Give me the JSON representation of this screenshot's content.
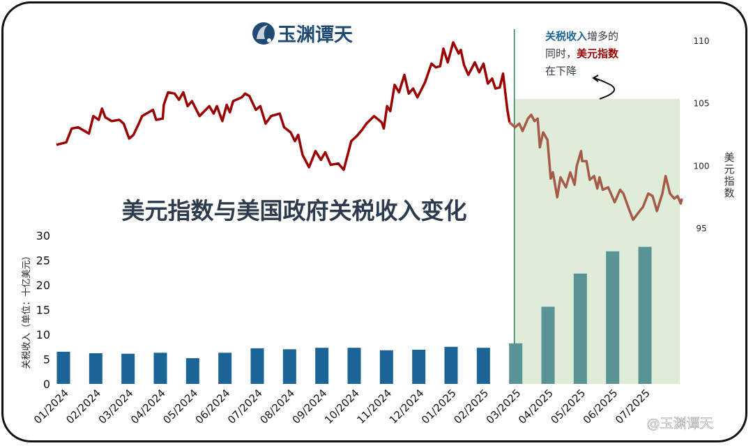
{
  "logo": {
    "text": "玉渊谭天",
    "color": "#1f4a73"
  },
  "watermark": "@玉渊谭天",
  "chart_data": {
    "type": "bar+line",
    "title": "美元指数与美国政府关税收入变化",
    "annotation": {
      "parts": [
        {
          "text": "关税收入",
          "color": "#1a6496"
        },
        {
          "text": "增多的",
          "color": "#333a44"
        },
        {
          "text": "同时，",
          "color": "#333a44"
        },
        {
          "text": "美元指数",
          "color": "#9b0000"
        },
        {
          "text": "在下降",
          "color": "#333a44"
        }
      ]
    },
    "highlight_start": "03/2025",
    "categories": [
      "01/2024",
      "02/2024",
      "03/2024",
      "04/2024",
      "05/2024",
      "06/2024",
      "07/2024",
      "08/2024",
      "09/2024",
      "10/2024",
      "11/2024",
      "12/2024",
      "01/2025",
      "02/2025",
      "03/2025",
      "04/2025",
      "05/2025",
      "06/2025",
      "07/2025"
    ],
    "bars": {
      "ylabel": "关税收入（单位：十亿美元）",
      "ylim": [
        0,
        30
      ],
      "yticks": [
        0,
        5,
        10,
        15,
        20,
        25,
        30
      ],
      "values": [
        6.5,
        6.2,
        6.1,
        6.3,
        5.2,
        6.3,
        7.2,
        7.0,
        7.3,
        7.3,
        6.8,
        6.9,
        7.5,
        7.3,
        8.2,
        15.6,
        22.3,
        26.8,
        27.7
      ],
      "color": "#1a6496",
      "highlight_color": "#5a9396"
    },
    "line": {
      "ylabel": "美元指数",
      "ylim": [
        95,
        110
      ],
      "yticks": [
        95,
        100,
        105,
        110
      ],
      "color": "#9b0000",
      "highlight_color": "#a65a48",
      "highlight_from": "2025-02-22",
      "points": [
        [
          "2024-01-01",
          101.7
        ],
        [
          "2024-01-10",
          101.9
        ],
        [
          "2024-01-15",
          103.0
        ],
        [
          "2024-01-21",
          103.1
        ],
        [
          "2024-01-31",
          102.6
        ],
        [
          "2024-02-04",
          104.0
        ],
        [
          "2024-02-09",
          103.7
        ],
        [
          "2024-02-12",
          104.6
        ],
        [
          "2024-02-15",
          103.9
        ],
        [
          "2024-02-21",
          103.6
        ],
        [
          "2024-02-28",
          103.7
        ],
        [
          "2024-03-03",
          103.4
        ],
        [
          "2024-03-08",
          102.2
        ],
        [
          "2024-03-12",
          102.5
        ],
        [
          "2024-03-17",
          103.4
        ],
        [
          "2024-03-20",
          104.0
        ],
        [
          "2024-03-30",
          104.5
        ],
        [
          "2024-04-02",
          103.7
        ],
        [
          "2024-04-08",
          103.8
        ],
        [
          "2024-04-09",
          104.9
        ],
        [
          "2024-04-13",
          105.9
        ],
        [
          "2024-04-19",
          105.8
        ],
        [
          "2024-04-23",
          105.3
        ],
        [
          "2024-04-27",
          105.9
        ],
        [
          "2024-05-01",
          104.8
        ],
        [
          "2024-05-05",
          105.2
        ],
        [
          "2024-05-12",
          104.0
        ],
        [
          "2024-05-21",
          104.8
        ],
        [
          "2024-05-25",
          104.2
        ],
        [
          "2024-05-28",
          104.8
        ],
        [
          "2024-06-02",
          103.6
        ],
        [
          "2024-06-06",
          104.9
        ],
        [
          "2024-06-09",
          104.3
        ],
        [
          "2024-06-12",
          105.2
        ],
        [
          "2024-06-20",
          105.5
        ],
        [
          "2024-06-23",
          105.8
        ],
        [
          "2024-06-27",
          105.6
        ],
        [
          "2024-07-03",
          104.5
        ],
        [
          "2024-07-07",
          104.8
        ],
        [
          "2024-07-12",
          103.4
        ],
        [
          "2024-07-17",
          104.0
        ],
        [
          "2024-07-25",
          104.2
        ],
        [
          "2024-07-29",
          103.1
        ],
        [
          "2024-08-04",
          102.7
        ],
        [
          "2024-08-08",
          102.0
        ],
        [
          "2024-08-11",
          102.5
        ],
        [
          "2024-08-15",
          100.9
        ],
        [
          "2024-08-21",
          99.9
        ],
        [
          "2024-08-27",
          101.2
        ],
        [
          "2024-09-01",
          100.5
        ],
        [
          "2024-09-05",
          101.1
        ],
        [
          "2024-09-10",
          100.1
        ],
        [
          "2024-09-17",
          100.2
        ],
        [
          "2024-09-22",
          99.7
        ],
        [
          "2024-09-29",
          102.0
        ],
        [
          "2024-10-04",
          102.4
        ],
        [
          "2024-10-09",
          102.9
        ],
        [
          "2024-10-13",
          103.4
        ],
        [
          "2024-10-20",
          104.0
        ],
        [
          "2024-10-27",
          103.5
        ],
        [
          "2024-10-29",
          103.0
        ],
        [
          "2024-11-01",
          104.8
        ],
        [
          "2024-11-04",
          104.4
        ],
        [
          "2024-11-08",
          106.5
        ],
        [
          "2024-11-12",
          105.9
        ],
        [
          "2024-11-17",
          107.3
        ],
        [
          "2024-11-21",
          105.8
        ],
        [
          "2024-11-25",
          106.2
        ],
        [
          "2024-11-29",
          105.5
        ],
        [
          "2024-12-06",
          106.7
        ],
        [
          "2024-12-12",
          108.2
        ],
        [
          "2024-12-16",
          107.9
        ],
        [
          "2024-12-20",
          108.0
        ],
        [
          "2024-12-23",
          109.4
        ],
        [
          "2024-12-27",
          108.3
        ],
        [
          "2025-01-01",
          109.9
        ],
        [
          "2025-01-06",
          109.0
        ],
        [
          "2025-01-08",
          109.3
        ],
        [
          "2025-01-11",
          108.1
        ],
        [
          "2025-01-15",
          107.3
        ],
        [
          "2025-01-21",
          108.3
        ],
        [
          "2025-01-25",
          107.5
        ],
        [
          "2025-01-29",
          108.2
        ],
        [
          "2025-02-02",
          106.6
        ],
        [
          "2025-02-06",
          107.0
        ],
        [
          "2025-02-09",
          106.2
        ],
        [
          "2025-02-13",
          106.3
        ],
        [
          "2025-02-16",
          107.4
        ],
        [
          "2025-02-20",
          104.5
        ],
        [
          "2025-02-22",
          103.5
        ],
        [
          "2025-02-27",
          103.1
        ],
        [
          "2025-03-03",
          103.4
        ],
        [
          "2025-03-06",
          102.8
        ],
        [
          "2025-03-11",
          103.8
        ],
        [
          "2025-03-14",
          104.1
        ],
        [
          "2025-03-17",
          103.6
        ],
        [
          "2025-03-20",
          103.8
        ],
        [
          "2025-03-22",
          101.5
        ],
        [
          "2025-03-25",
          102.7
        ],
        [
          "2025-03-29",
          102.1
        ],
        [
          "2025-04-01",
          99.0
        ],
        [
          "2025-04-03",
          99.5
        ],
        [
          "2025-04-07",
          97.5
        ],
        [
          "2025-04-10",
          99.1
        ],
        [
          "2025-04-15",
          98.3
        ],
        [
          "2025-04-19",
          99.5
        ],
        [
          "2025-04-23",
          98.5
        ],
        [
          "2025-04-25",
          100.0
        ],
        [
          "2025-04-29",
          101.2
        ],
        [
          "2025-04-30",
          100.4
        ],
        [
          "2025-05-04",
          100.4
        ],
        [
          "2025-05-07",
          98.9
        ],
        [
          "2025-05-11",
          99.2
        ],
        [
          "2025-05-14",
          98.2
        ],
        [
          "2025-05-16",
          99.1
        ],
        [
          "2025-05-19",
          98.1
        ],
        [
          "2025-05-24",
          98.3
        ],
        [
          "2025-05-30",
          97.1
        ],
        [
          "2025-06-04",
          98.1
        ],
        [
          "2025-06-07",
          97.8
        ],
        [
          "2025-06-12",
          96.6
        ],
        [
          "2025-06-16",
          95.7
        ],
        [
          "2025-06-22",
          96.4
        ],
        [
          "2025-06-25",
          96.7
        ],
        [
          "2025-06-30",
          97.8
        ],
        [
          "2025-07-04",
          97.6
        ],
        [
          "2025-07-08",
          96.4
        ],
        [
          "2025-07-13",
          97.8
        ],
        [
          "2025-07-16",
          99.2
        ],
        [
          "2025-07-20",
          97.8
        ],
        [
          "2025-07-24",
          97.4
        ],
        [
          "2025-07-27",
          97.6
        ],
        [
          "2025-07-30",
          97.0
        ],
        [
          "2025-07-31",
          97.4
        ]
      ]
    },
    "highlight_color": "#deecd8",
    "divider_color": "#2e7d5a",
    "grid": false
  }
}
